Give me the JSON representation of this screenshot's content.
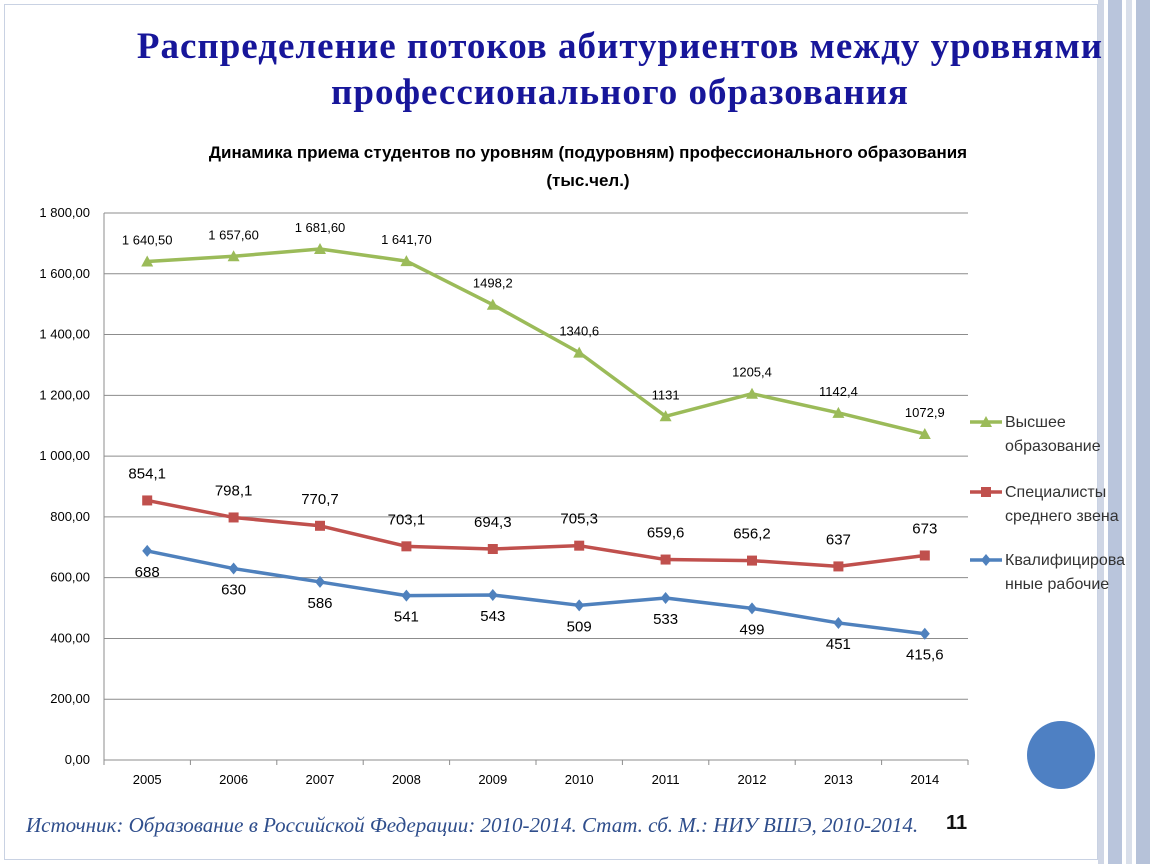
{
  "slide": {
    "title": "Распределение потоков абитуриентов между уровнями профессионального образования",
    "source": "Источник: Образование в Российской Федерации: 2010-2014. Стат. сб. М.: НИУ ВШЭ, 2010-2014.",
    "page_number": "11",
    "title_color": "#17169a",
    "accent_circle_color": "#4e80c3"
  },
  "chart_data": {
    "type": "line",
    "title_line1": "Динамика приема студентов по уровням (подуровням) профессионального образования",
    "title_line2": "(тыс.чел.)",
    "categories": [
      "2005",
      "2006",
      "2007",
      "2008",
      "2009",
      "2010",
      "2011",
      "2012",
      "2013",
      "2014"
    ],
    "ylim": [
      0,
      1800
    ],
    "yticks": [
      0,
      200,
      400,
      600,
      800,
      1000,
      1200,
      1400,
      1600,
      1800
    ],
    "ytick_labels": [
      "0,00",
      "200,00",
      "400,00",
      "600,00",
      "800,00",
      "1 000,00",
      "1 200,00",
      "1 400,00",
      "1 600,00",
      "1 800,00"
    ],
    "grid": true,
    "legend_position": "right",
    "series": [
      {
        "name": "Высшее образование",
        "legend_lines": [
          "Высшее",
          "образование"
        ],
        "color": "#9bbb59",
        "marker": "triangle",
        "values": [
          1640.5,
          1657.6,
          1681.6,
          1641.7,
          1498.2,
          1340.6,
          1131,
          1205.4,
          1142.4,
          1072.9
        ],
        "labels": [
          "1 640,50",
          "1 657,60",
          "1 681,60",
          "1 641,70",
          "1498,2",
          "1340,6",
          "1131",
          "1205,4",
          "1142,4",
          "1072,9"
        ]
      },
      {
        "name": "Специалисты среднего звена",
        "legend_lines": [
          "Специалисты",
          "среднего звена"
        ],
        "color": "#c0504d",
        "marker": "square",
        "values": [
          854.1,
          798.1,
          770.7,
          703.1,
          694.3,
          705.3,
          659.6,
          656.2,
          637,
          673
        ],
        "labels": [
          "854,1",
          "798,1",
          "770,7",
          "703,1",
          "694,3",
          "705,3",
          "659,6",
          "656,2",
          "637",
          "673"
        ]
      },
      {
        "name": "Квалифицированные рабочие",
        "legend_lines": [
          "Квалифицирова",
          "нные рабочие"
        ],
        "color": "#4f81bd",
        "marker": "diamond",
        "values": [
          688,
          630,
          586,
          541,
          543,
          509,
          533,
          499,
          451,
          415.6
        ],
        "labels": [
          "688",
          "630",
          "586",
          "541",
          "543",
          "509",
          "533",
          "499",
          "451",
          "415,6"
        ]
      }
    ]
  }
}
